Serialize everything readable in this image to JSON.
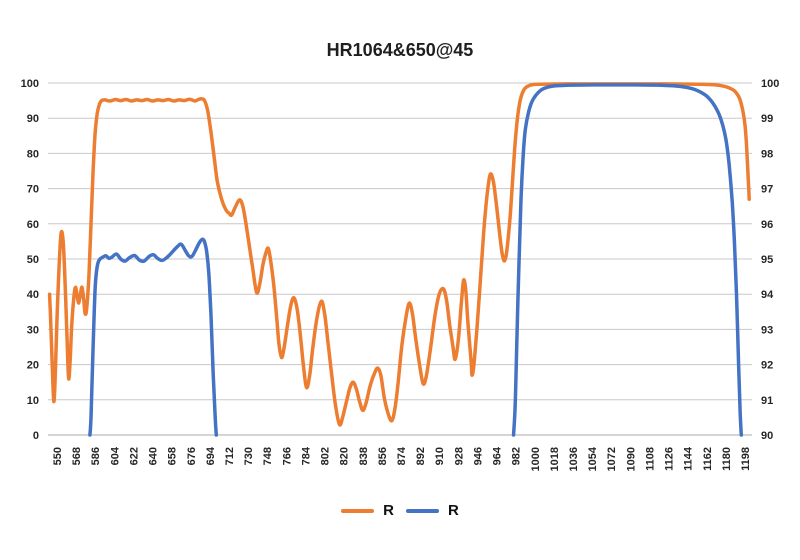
{
  "chart_data": {
    "type": "line",
    "title": "HR1064&650@45",
    "xlabel": "",
    "ylabel": "",
    "grid": true,
    "legend_position": "bottom",
    "background": "#FFFFFF",
    "gridline_color": "#C9C9C9",
    "axis_line_color": "#ABABAB",
    "tick_text_color": "#262626",
    "x_tick_labels": [
      "550",
      "568",
      "586",
      "604",
      "622",
      "640",
      "658",
      "676",
      "694",
      "712",
      "730",
      "748",
      "766",
      "784",
      "802",
      "820",
      "838",
      "856",
      "874",
      "892",
      "910",
      "928",
      "946",
      "964",
      "982",
      "1000",
      "1018",
      "1036",
      "1054",
      "1072",
      "1090",
      "1108",
      "1126",
      "1144",
      "1162",
      "1180",
      "1198"
    ],
    "left_axis": {
      "min": 0,
      "max": 100,
      "ticks": [
        "0",
        "10",
        "20",
        "30",
        "40",
        "50",
        "60",
        "70",
        "80",
        "90",
        "100"
      ]
    },
    "right_axis": {
      "min": 90,
      "max": 100,
      "ticks": [
        "90",
        "91",
        "92",
        "93",
        "94",
        "95",
        "96",
        "97",
        "98",
        "99",
        "100"
      ]
    },
    "legend": [
      {
        "label": "R",
        "color": "#ED7D31"
      },
      {
        "label": "R",
        "color": "#4472C4"
      }
    ],
    "series": [
      {
        "name": "R",
        "color": "#ED7D31",
        "width": 3.5,
        "segments": [
          [
            [
              543,
              40
            ],
            [
              544,
              33
            ],
            [
              545.5,
              20
            ],
            [
              547,
              9.5
            ],
            [
              548.5,
              18
            ],
            [
              550,
              33
            ],
            [
              552,
              48
            ],
            [
              554,
              57.5
            ],
            [
              556,
              54
            ],
            [
              558,
              40
            ],
            [
              559.5,
              27
            ],
            [
              561,
              16
            ],
            [
              562.5,
              22
            ],
            [
              564,
              32
            ],
            [
              566,
              39.5
            ],
            [
              567.5,
              42
            ],
            [
              569,
              39.5
            ],
            [
              570.5,
              37.5
            ],
            [
              572,
              40
            ],
            [
              573.5,
              42
            ],
            [
              575,
              39
            ],
            [
              576.5,
              34.5
            ],
            [
              578,
              36
            ],
            [
              580,
              45
            ],
            [
              582,
              60
            ],
            [
              584,
              75
            ],
            [
              586,
              86
            ],
            [
              588,
              91.5
            ],
            [
              590,
              94
            ],
            [
              592,
              95
            ],
            [
              595,
              95.2
            ],
            [
              600,
              94.9
            ],
            [
              605,
              95.3
            ],
            [
              610,
              95.0
            ],
            [
              615,
              95.3
            ],
            [
              620,
              94.9
            ],
            [
              625,
              95.2
            ],
            [
              630,
              95.0
            ],
            [
              635,
              95.3
            ],
            [
              640,
              94.9
            ],
            [
              645,
              95.2
            ],
            [
              650,
              95.0
            ],
            [
              655,
              95.3
            ],
            [
              660,
              94.9
            ],
            [
              665,
              95.2
            ],
            [
              670,
              95.0
            ],
            [
              675,
              95.4
            ],
            [
              680,
              94.9
            ],
            [
              683,
              95.3
            ],
            [
              686,
              95.5
            ],
            [
              689,
              95.0
            ],
            [
              692,
              92
            ],
            [
              695,
              86
            ],
            [
              698,
              79
            ],
            [
              701,
              72
            ],
            [
              705,
              67
            ],
            [
              709,
              64
            ],
            [
              712,
              63
            ],
            [
              714.5,
              62.5
            ],
            [
              718,
              64.8
            ],
            [
              722,
              66.8
            ],
            [
              725,
              65
            ],
            [
              728,
              60
            ],
            [
              731,
              54
            ],
            [
              734,
              48
            ],
            [
              738,
              40.5
            ],
            [
              741,
              43
            ],
            [
              744,
              48.5
            ],
            [
              747,
              52
            ],
            [
              749,
              53
            ],
            [
              751,
              50
            ],
            [
              754,
              43
            ],
            [
              757,
              33
            ],
            [
              759,
              26
            ],
            [
              761.5,
              22
            ],
            [
              764,
              25
            ],
            [
              767,
              31
            ],
            [
              770,
              36.5
            ],
            [
              773,
              39
            ],
            [
              776,
              36
            ],
            [
              779,
              29
            ],
            [
              782,
              20
            ],
            [
              785,
              13.5
            ],
            [
              788,
              17
            ],
            [
              791,
              25
            ],
            [
              795,
              33.5
            ],
            [
              799,
              38
            ],
            [
              802,
              34.5
            ],
            [
              805,
              27
            ],
            [
              808,
              19
            ],
            [
              812,
              9
            ],
            [
              816,
              3
            ],
            [
              819,
              5
            ],
            [
              823,
              10
            ],
            [
              826,
              13.5
            ],
            [
              829,
              15
            ],
            [
              832,
              13
            ],
            [
              835,
              9.5
            ],
            [
              838,
              7
            ],
            [
              841,
              9
            ],
            [
              845,
              14
            ],
            [
              849,
              17.5
            ],
            [
              852,
              19
            ],
            [
              855,
              17
            ],
            [
              858,
              11
            ],
            [
              861,
              7
            ],
            [
              865,
              4
            ],
            [
              868,
              7
            ],
            [
              871,
              14
            ],
            [
              875,
              26
            ],
            [
              879,
              34
            ],
            [
              882,
              37.5
            ],
            [
              885,
              34
            ],
            [
              888,
              27
            ],
            [
              892,
              19
            ],
            [
              895,
              14.5
            ],
            [
              898,
              17
            ],
            [
              902,
              25
            ],
            [
              906,
              34
            ],
            [
              910,
              40
            ],
            [
              914,
              41.5
            ],
            [
              917,
              38
            ],
            [
              920,
              31
            ],
            [
              923,
              25
            ],
            [
              925,
              21.5
            ],
            [
              928,
              27
            ],
            [
              931,
              38
            ],
            [
              933,
              44
            ],
            [
              935,
              41
            ],
            [
              937,
              32
            ],
            [
              940,
              21
            ],
            [
              941,
              17
            ],
            [
              943,
              21
            ],
            [
              946,
              32
            ],
            [
              949,
              45
            ],
            [
              952,
              58
            ],
            [
              955,
              68
            ],
            [
              958,
              74
            ],
            [
              961,
              72
            ],
            [
              964,
              65
            ],
            [
              967,
              57
            ],
            [
              969,
              52
            ],
            [
              971,
              49.5
            ],
            [
              973,
              51
            ],
            [
              975,
              56
            ],
            [
              977,
              63
            ],
            [
              979,
              72
            ],
            [
              981,
              81
            ],
            [
              983,
              88
            ],
            [
              985,
              93
            ],
            [
              987,
              96
            ],
            [
              990,
              98.2
            ],
            [
              993,
              99
            ],
            [
              996,
              99.4
            ],
            [
              1000,
              99.6
            ],
            [
              1010,
              99.7
            ],
            [
              1030,
              99.75
            ],
            [
              1060,
              99.75
            ],
            [
              1090,
              99.75
            ],
            [
              1120,
              99.75
            ],
            [
              1145,
              99.7
            ],
            [
              1160,
              99.6
            ],
            [
              1170,
              99.45
            ],
            [
              1178,
              99.1
            ],
            [
              1184,
              98.5
            ],
            [
              1189,
              97.5
            ],
            [
              1193,
              95.5
            ],
            [
              1196,
              92
            ],
            [
              1198,
              88
            ],
            [
              1199.5,
              82
            ],
            [
              1201,
              73
            ],
            [
              1202,
              67
            ]
          ]
        ]
      },
      {
        "name": "R",
        "color": "#4472C4",
        "width": 3.5,
        "segments": [
          [
            [
              581,
              0
            ],
            [
              582,
              5
            ],
            [
              584,
              25
            ],
            [
              586,
              42
            ],
            [
              588,
              48
            ],
            [
              590,
              49.8
            ],
            [
              593,
              50.5
            ],
            [
              596,
              50.9
            ],
            [
              599,
              50.2
            ],
            [
              602,
              50.6
            ],
            [
              606,
              51.4
            ],
            [
              610,
              50.0
            ],
            [
              614,
              49.4
            ],
            [
              618,
              50.3
            ],
            [
              623,
              51.0
            ],
            [
              628,
              49.6
            ],
            [
              632,
              49.4
            ],
            [
              637,
              50.8
            ],
            [
              641,
              51.2
            ],
            [
              645,
              50.1
            ],
            [
              649,
              49.6
            ],
            [
              653,
              50.3
            ],
            [
              658,
              51.8
            ],
            [
              663,
              53.4
            ],
            [
              667,
              54.2
            ],
            [
              671,
              52.3
            ],
            [
              674,
              50.9
            ],
            [
              677,
              50.7
            ],
            [
              680,
              52.2
            ],
            [
              684,
              54.6
            ],
            [
              687,
              55.6
            ],
            [
              689,
              54.8
            ],
            [
              691,
              52
            ],
            [
              693,
              46
            ],
            [
              695,
              34
            ],
            [
              697,
              18
            ],
            [
              699,
              5
            ],
            [
              700,
              0
            ]
          ],
          [
            [
              980,
              0
            ],
            [
              981.5,
              8
            ],
            [
              983,
              25
            ],
            [
              985,
              48
            ],
            [
              987,
              67
            ],
            [
              989,
              79
            ],
            [
              991,
              86.5
            ],
            [
              994,
              91.5
            ],
            [
              997,
              94.5
            ],
            [
              1001,
              96.5
            ],
            [
              1006,
              98
            ],
            [
              1012,
              98.8
            ],
            [
              1020,
              99.2
            ],
            [
              1035,
              99.4
            ],
            [
              1055,
              99.45
            ],
            [
              1075,
              99.45
            ],
            [
              1095,
              99.45
            ],
            [
              1115,
              99.4
            ],
            [
              1130,
              99.2
            ],
            [
              1140,
              98.9
            ],
            [
              1148,
              98.4
            ],
            [
              1155,
              97.6
            ],
            [
              1161,
              96.5
            ],
            [
              1166,
              95
            ],
            [
              1170,
              93.2
            ],
            [
              1174,
              90.8
            ],
            [
              1177,
              88
            ],
            [
              1180,
              84
            ],
            [
              1183,
              77
            ],
            [
              1186,
              66
            ],
            [
              1188,
              55
            ],
            [
              1190,
              40
            ],
            [
              1192,
              20
            ],
            [
              1193.5,
              6
            ],
            [
              1194.5,
              0
            ]
          ]
        ]
      }
    ]
  }
}
